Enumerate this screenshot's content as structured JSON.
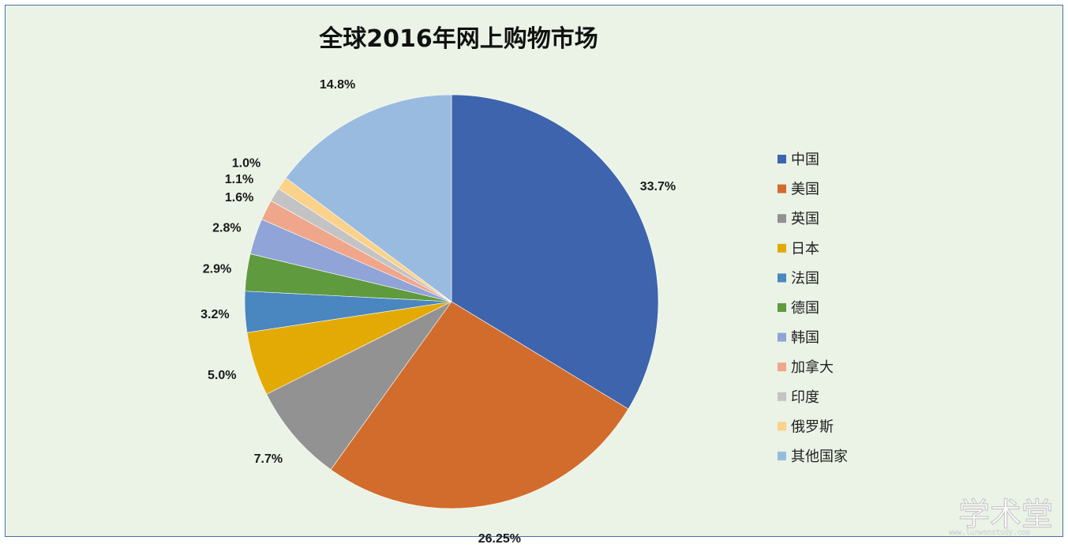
{
  "chart_data": {
    "type": "pie",
    "title": "全球2016年网上购物市场",
    "slices": [
      {
        "name": "中国",
        "value": 33.7,
        "label": "33.7%",
        "color": "#3d64ad"
      },
      {
        "name": "美国",
        "value": 26.25,
        "label": "26.25%",
        "color": "#d26c2c"
      },
      {
        "name": "英国",
        "value": 7.7,
        "label": "7.7%",
        "color": "#929292"
      },
      {
        "name": "日本",
        "value": 5.0,
        "label": "5.0%",
        "color": "#e3aa06"
      },
      {
        "name": "法国",
        "value": 3.2,
        "label": "3.2%",
        "color": "#4a86c0"
      },
      {
        "name": "德国",
        "value": 2.9,
        "label": "2.9%",
        "color": "#5f9a3e"
      },
      {
        "name": "韩国",
        "value": 2.8,
        "label": "2.8%",
        "color": "#90a4d7"
      },
      {
        "name": "加拿大",
        "value": 1.6,
        "label": "1.6%",
        "color": "#f0a68b"
      },
      {
        "name": "印度",
        "value": 1.1,
        "label": "1.1%",
        "color": "#c3c3c3"
      },
      {
        "name": "俄罗斯",
        "value": 1.0,
        "label": "1.0%",
        "color": "#fbd289"
      },
      {
        "name": "其他国家",
        "value": 14.8,
        "label": "14.8%",
        "color": "#9abbe0"
      }
    ],
    "legend_position": "right"
  },
  "watermark": {
    "text": "学术堂",
    "subtext": "www.lunwenstudy.com"
  }
}
